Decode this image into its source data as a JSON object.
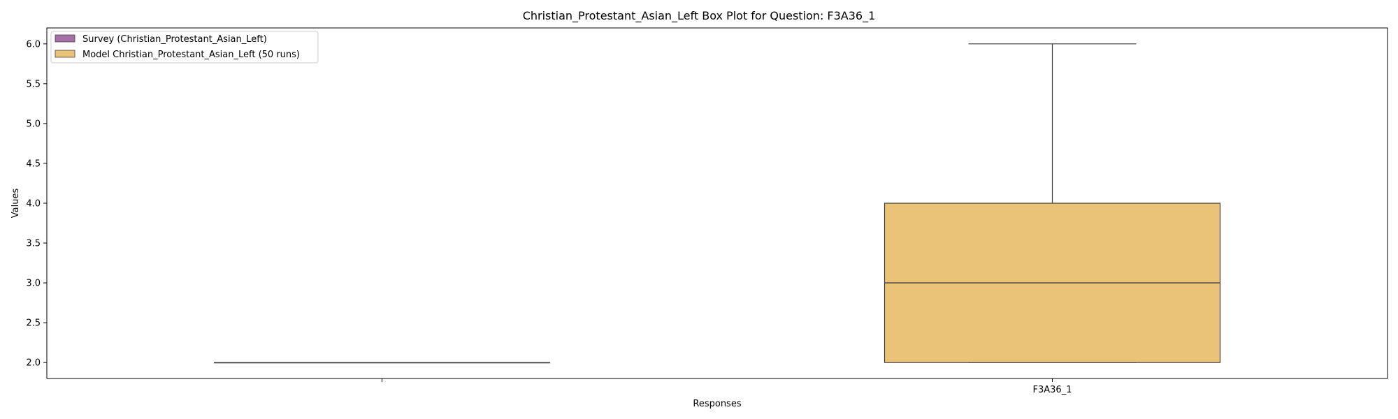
{
  "chart_data": {
    "type": "box",
    "title": "Christian_Protestant_Asian_Left Box Plot for Question: F3A36_1",
    "xlabel": "Responses",
    "ylabel": "Values",
    "ylim": [
      1.8,
      6.2
    ],
    "yticks": [
      "2.0",
      "2.5",
      "3.0",
      "3.5",
      "4.0",
      "4.5",
      "5.0",
      "5.5",
      "6.0"
    ],
    "categories": [
      "",
      "F3A36_1"
    ],
    "legend_position": "top-left",
    "series": [
      {
        "name": "Survey (Christian_Protestant_Asian_Left)",
        "color": "#a66fa8",
        "stats": {
          "whisker_low": 2.0,
          "q1": 2.0,
          "median": 2.0,
          "q3": 2.0,
          "whisker_high": 2.0
        }
      },
      {
        "name": "Model Christian_Protestant_Asian_Left (50 runs)",
        "color": "#ebc378",
        "stats": {
          "whisker_low": 2.0,
          "q1": 2.0,
          "median": 3.0,
          "q3": 4.0,
          "whisker_high": 6.0
        }
      }
    ]
  }
}
